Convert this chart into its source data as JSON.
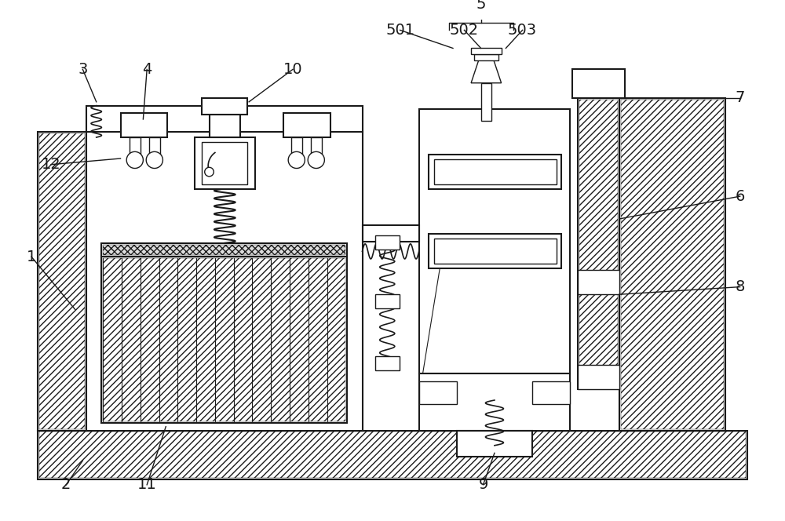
{
  "bg_color": "#ffffff",
  "line_color": "#1a1a1a",
  "fig_width": 10.0,
  "fig_height": 6.64,
  "dpi": 100
}
